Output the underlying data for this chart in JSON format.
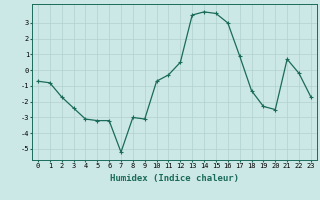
{
  "x": [
    0,
    1,
    2,
    3,
    4,
    5,
    6,
    7,
    8,
    9,
    10,
    11,
    12,
    13,
    14,
    15,
    16,
    17,
    18,
    19,
    20,
    21,
    22,
    23
  ],
  "y": [
    -0.7,
    -0.8,
    -1.7,
    -2.4,
    -3.1,
    -3.2,
    -3.2,
    -5.2,
    -3.0,
    -3.1,
    -0.7,
    -0.3,
    0.5,
    3.5,
    3.7,
    3.6,
    3.0,
    0.9,
    -1.3,
    -2.3,
    -2.5,
    0.7,
    -0.2,
    -1.7
  ],
  "line_color": "#1a6b5a",
  "marker": "+",
  "markersize": 3,
  "linewidth": 0.9,
  "xlabel": "Humidex (Indice chaleur)",
  "xlim": [
    -0.5,
    23.5
  ],
  "ylim": [
    -5.7,
    4.2
  ],
  "yticks": [
    -5,
    -4,
    -3,
    -2,
    -1,
    0,
    1,
    2,
    3
  ],
  "xticks": [
    0,
    1,
    2,
    3,
    4,
    5,
    6,
    7,
    8,
    9,
    10,
    11,
    12,
    13,
    14,
    15,
    16,
    17,
    18,
    19,
    20,
    21,
    22,
    23
  ],
  "background_color": "#cce8e6",
  "grid_color": "#b0d0ce",
  "tick_fontsize": 5,
  "xlabel_fontsize": 6.5,
  "markeredgewidth": 0.8
}
